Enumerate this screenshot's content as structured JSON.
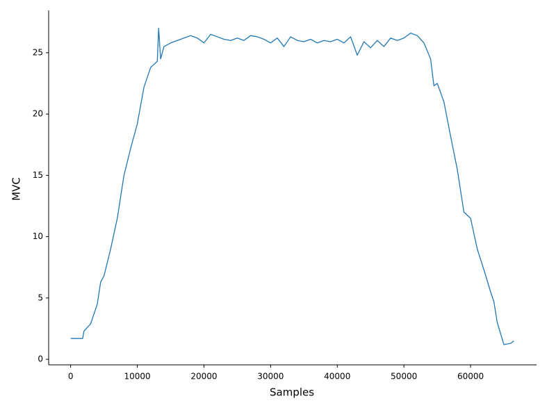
{
  "chart_data": {
    "type": "line",
    "x_label": "Samples",
    "y_label": "MVC",
    "x": [
      0,
      1000,
      1800,
      2000,
      3000,
      4000,
      4500,
      5000,
      6000,
      7000,
      8000,
      9000,
      10000,
      11000,
      12000,
      13000,
      13200,
      13500,
      14000,
      15000,
      16000,
      17000,
      18000,
      19000,
      20000,
      21000,
      22000,
      23000,
      24000,
      25000,
      26000,
      27000,
      28000,
      29000,
      30000,
      31000,
      32000,
      33000,
      34000,
      35000,
      36000,
      37000,
      38000,
      39000,
      40000,
      41000,
      42000,
      43000,
      44000,
      45000,
      46000,
      47000,
      48000,
      49000,
      50000,
      51000,
      52000,
      53000,
      54000,
      54500,
      55000,
      56000,
      57000,
      58000,
      59000,
      60000,
      61000,
      62000,
      63000,
      63500,
      64000,
      65000,
      66000,
      66500
    ],
    "values": [
      1.7,
      1.7,
      1.7,
      2.3,
      2.9,
      4.5,
      6.3,
      6.8,
      9.0,
      11.5,
      15.0,
      17.2,
      19.2,
      22.2,
      23.8,
      24.3,
      27.0,
      24.5,
      25.5,
      25.8,
      26.0,
      26.2,
      26.4,
      26.2,
      25.8,
      26.5,
      26.3,
      26.1,
      26.0,
      26.2,
      26.0,
      26.4,
      26.3,
      26.1,
      25.8,
      26.2,
      25.5,
      26.3,
      26.0,
      25.9,
      26.1,
      25.8,
      26.0,
      25.9,
      26.1,
      25.8,
      26.3,
      24.8,
      25.9,
      25.4,
      26.0,
      25.5,
      26.2,
      26.0,
      26.2,
      26.6,
      26.4,
      25.8,
      24.5,
      22.3,
      22.5,
      21.0,
      18.2,
      15.5,
      12.0,
      11.5,
      9.0,
      7.3,
      5.5,
      4.7,
      3.0,
      1.2,
      1.3,
      1.5
    ],
    "color": "#1f77b4",
    "xlim": [
      -3300,
      69900
    ],
    "ylim": [
      -0.45,
      28.45
    ],
    "xticks": [
      0,
      10000,
      20000,
      30000,
      40000,
      50000,
      60000
    ],
    "yticks": [
      0,
      5,
      10,
      15,
      20,
      25
    ],
    "grid": false
  }
}
